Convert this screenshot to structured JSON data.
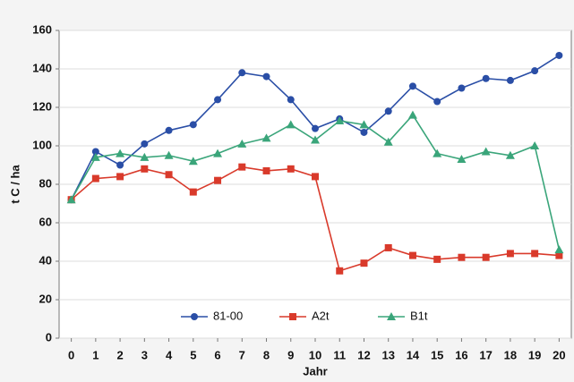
{
  "chart_data": {
    "type": "line",
    "x_label": "Jahr",
    "y_label": "t C / ha",
    "categories": [
      "0",
      "1",
      "2",
      "3",
      "4",
      "5",
      "6",
      "7",
      "8",
      "9",
      "10",
      "11",
      "12",
      "13",
      "14",
      "15",
      "16",
      "17",
      "18",
      "19",
      "20"
    ],
    "series": [
      {
        "name": "81-00",
        "color": "#2a4ea6",
        "marker": "circle",
        "values": [
          72,
          97,
          90,
          101,
          108,
          111,
          124,
          138,
          136,
          124,
          109,
          114,
          107,
          118,
          131,
          123,
          130,
          135,
          134,
          139,
          147
        ]
      },
      {
        "name": "A2t",
        "color": "#d93a2b",
        "marker": "square",
        "values": [
          72,
          83,
          84,
          88,
          85,
          76,
          82,
          89,
          87,
          88,
          84,
          35,
          39,
          47,
          43,
          41,
          42,
          42,
          44,
          44,
          43
        ]
      },
      {
        "name": "B1t",
        "color": "#3aa57a",
        "marker": "triangle",
        "values": [
          72,
          94,
          96,
          94,
          95,
          92,
          96,
          101,
          104,
          111,
          103,
          113,
          111,
          102,
          116,
          96,
          93,
          97,
          95,
          100,
          46
        ]
      }
    ],
    "ylim": [
      0,
      160
    ],
    "yticks": [
      0,
      20,
      40,
      60,
      80,
      100,
      120,
      140,
      160
    ],
    "grid": true,
    "legend": "lower center"
  }
}
